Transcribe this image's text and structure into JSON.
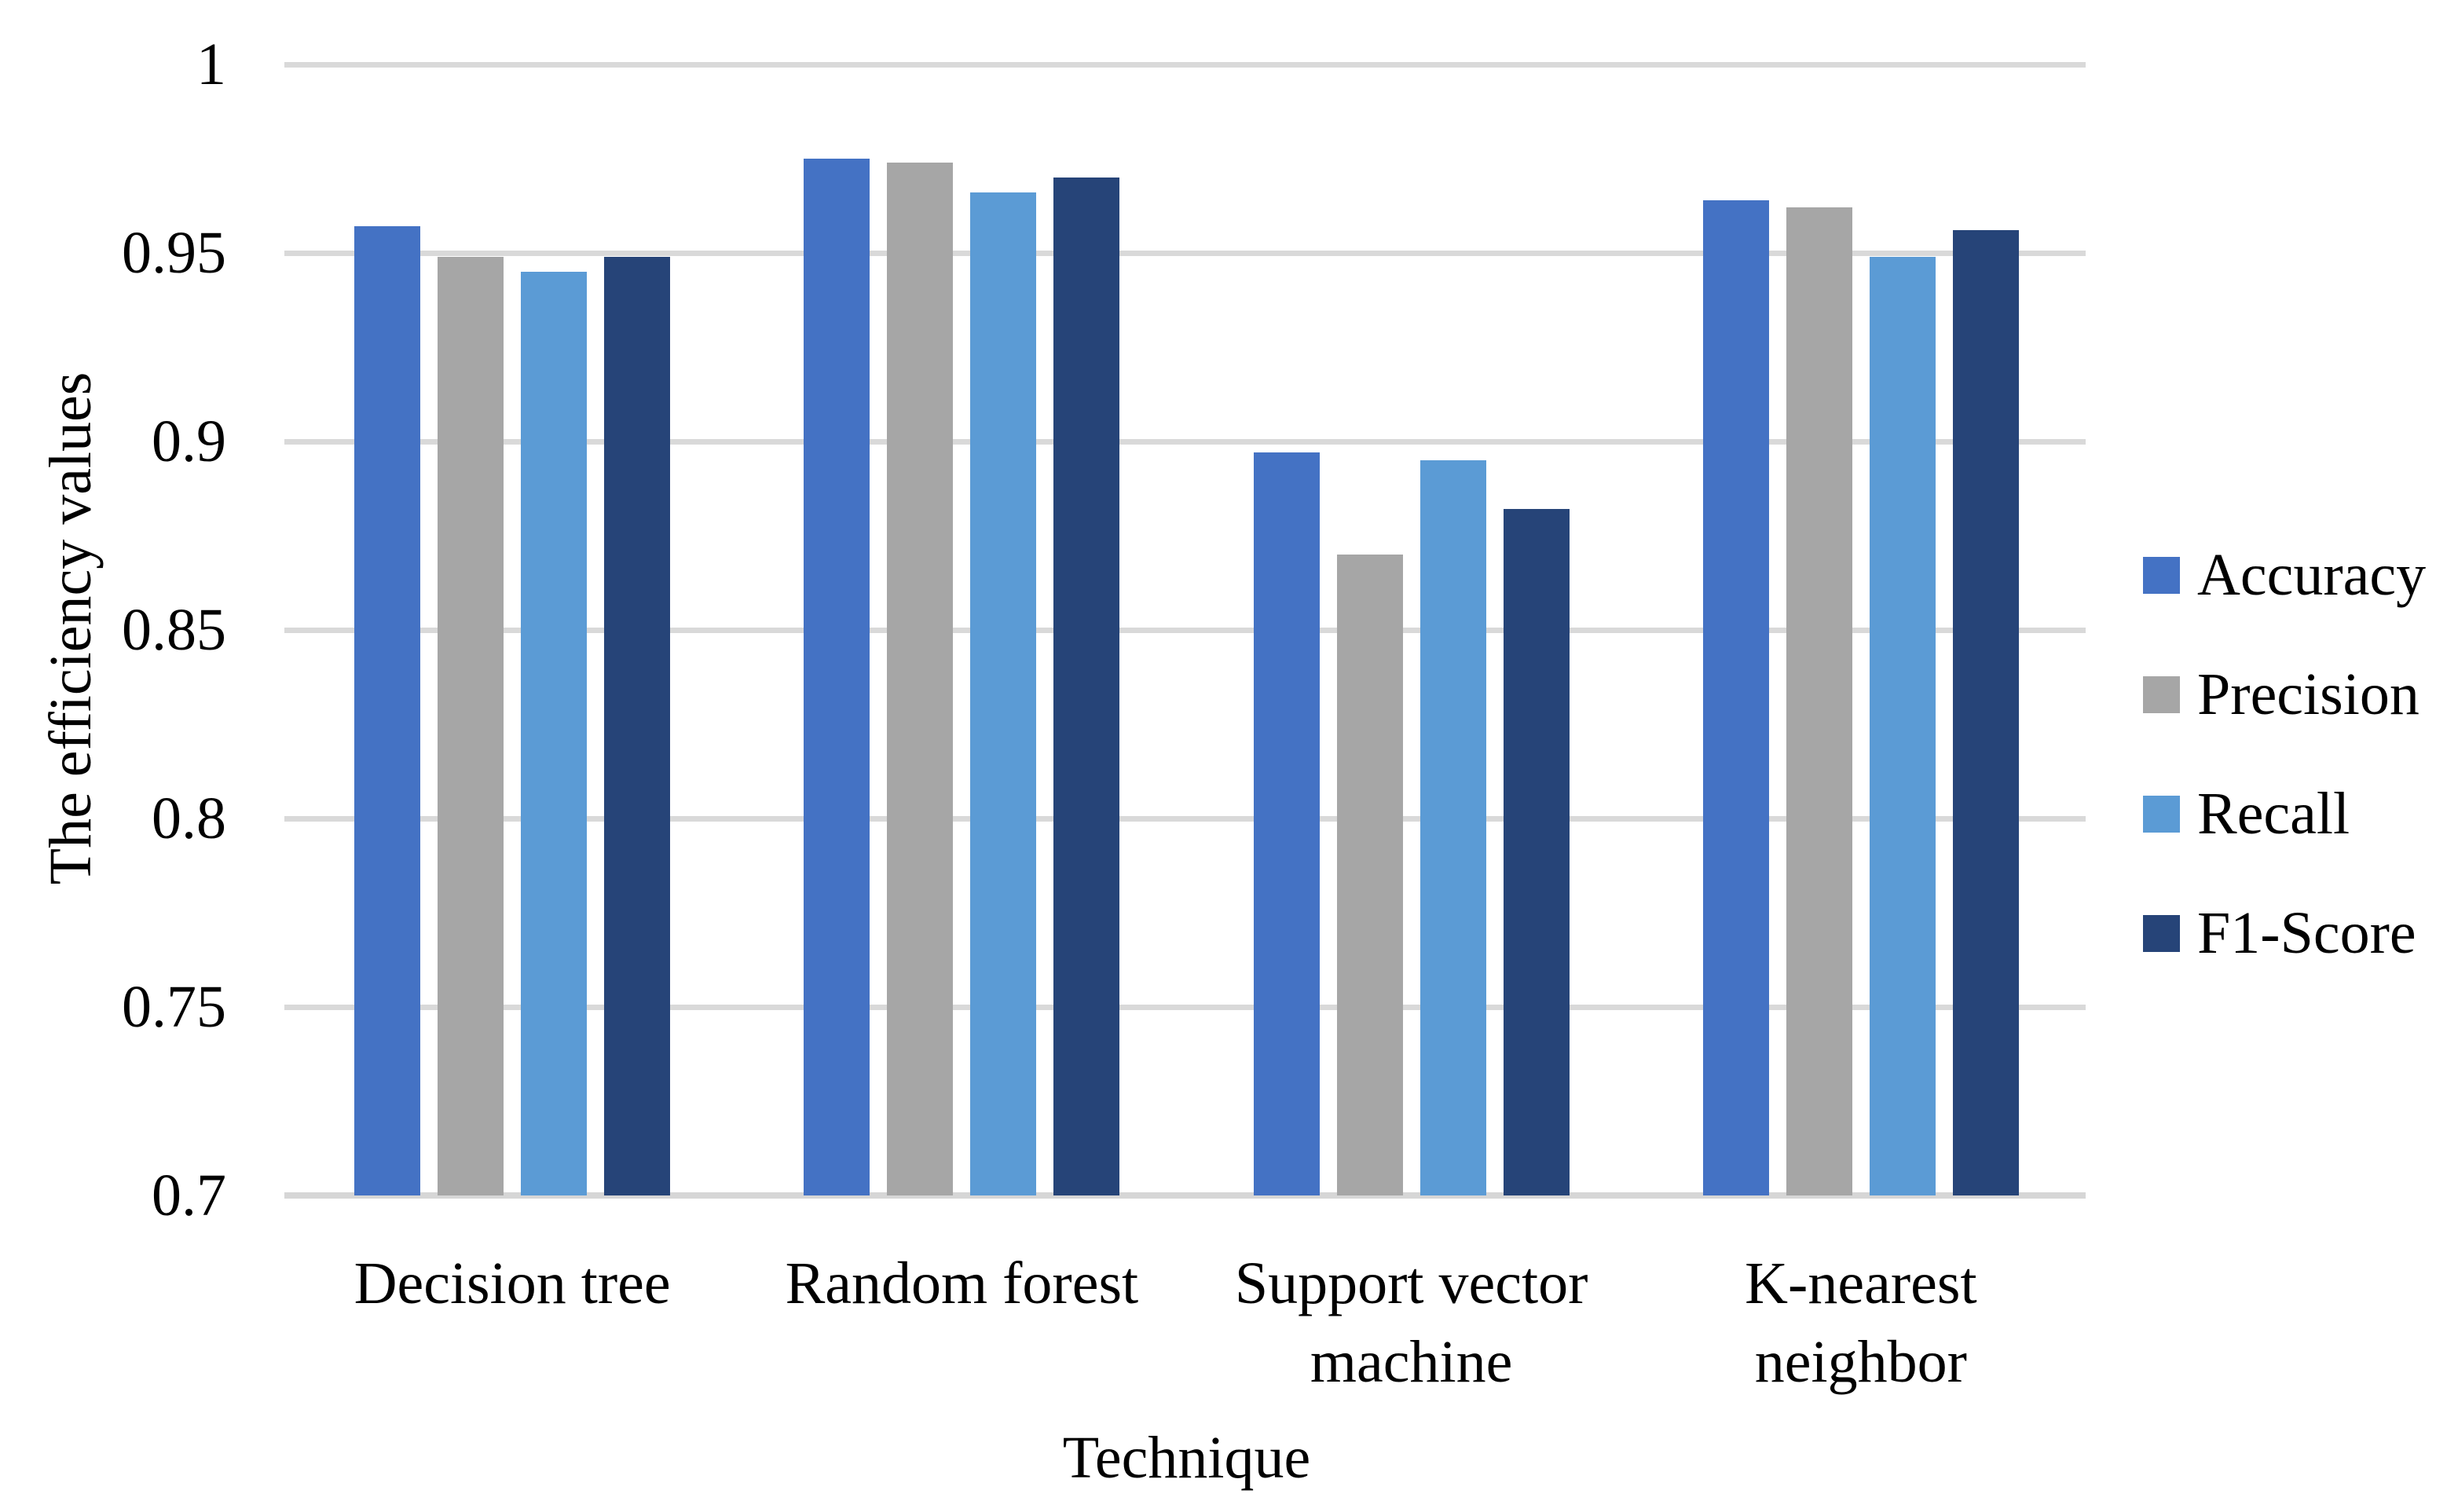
{
  "chart_data": {
    "type": "bar",
    "title": "",
    "xlabel": "Technique",
    "ylabel": "The efficiency values",
    "categories": [
      "Decision tree",
      "Random forest",
      "Support vector machine",
      "K-nearest neighbor"
    ],
    "series": [
      {
        "name": "Accuracy",
        "color": "#4472C4",
        "values": [
          0.957,
          0.975,
          0.897,
          0.964
        ]
      },
      {
        "name": "Precision",
        "color": "#A6A6A6",
        "values": [
          0.949,
          0.974,
          0.87,
          0.962
        ]
      },
      {
        "name": "Recall",
        "color": "#5B9BD5",
        "values": [
          0.945,
          0.966,
          0.895,
          0.949
        ]
      },
      {
        "name": "F1-Score",
        "color": "#264478",
        "values": [
          0.949,
          0.97,
          0.882,
          0.956
        ]
      }
    ],
    "ylim": [
      0.7,
      1.0
    ],
    "yticks": [
      0.7,
      0.75,
      0.8,
      0.85,
      0.9,
      0.95,
      1.0
    ],
    "ytick_labels": [
      "0.7",
      "0.75",
      "0.8",
      "0.85",
      "0.9",
      "0.95",
      "1"
    ],
    "grid": true,
    "legend_position": "right",
    "colors": {
      "gridline": "#D9D9D9",
      "axis_line": "#D6D6D6",
      "text": "#000000",
      "background": "#FFFFFF"
    }
  }
}
